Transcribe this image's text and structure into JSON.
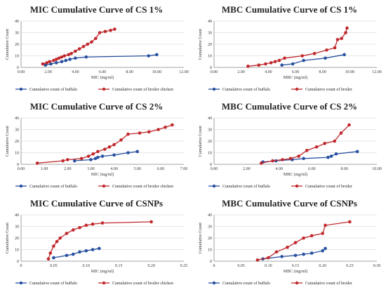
{
  "chart_data": [
    {
      "type": "line",
      "title": "MIC Cumulative Curve of CS 1%",
      "xlabel": "MIC (mg/ml)",
      "ylabel": "Cumulative Count",
      "xlim": [
        0,
        12
      ],
      "ylim": [
        0,
        40
      ],
      "x_ticks": [
        "0.00",
        "2.00",
        "4.00",
        "6.00",
        "8.00",
        "10.00",
        "12.00"
      ],
      "y_ticks": [
        "0",
        "10",
        "20",
        "30",
        "40"
      ],
      "grid": true,
      "legend_position": "bottom",
      "series": [
        {
          "name": "Cumulative count of buffalo",
          "color": "#2750a0",
          "x": [
            1.8,
            2.2,
            2.6,
            3.0,
            3.3,
            3.6,
            4.0,
            4.8,
            9.4,
            10.0
          ],
          "y": [
            2,
            3,
            4,
            5,
            6,
            7,
            8,
            9,
            10,
            11
          ]
        },
        {
          "name": "Cumulative count of broiler chicken",
          "color": "#c0282c",
          "x": [
            1.6,
            1.9,
            2.1,
            2.4,
            2.6,
            2.8,
            3.0,
            3.2,
            3.5,
            3.7,
            4.0,
            4.3,
            4.6,
            4.9,
            5.2,
            5.5,
            5.8,
            6.2,
            6.6,
            6.9
          ],
          "y": [
            3,
            4,
            5,
            6,
            7,
            8,
            9,
            10,
            11,
            12,
            14,
            16,
            18,
            20,
            22,
            25,
            30,
            31,
            32,
            33
          ]
        }
      ]
    },
    {
      "type": "line",
      "title": "MBC Cumulative Curve of CS 1%",
      "xlabel": "MBC (mg/ml)",
      "ylabel": "Cumulative Count",
      "xlim": [
        0,
        12
      ],
      "ylim": [
        0,
        40
      ],
      "x_ticks": [
        "0.00",
        "2.00",
        "4.00",
        "6.00",
        "8.00",
        "10.00",
        "12.00"
      ],
      "y_ticks": [
        "0",
        "10",
        "20",
        "30",
        "40"
      ],
      "grid": true,
      "legend_position": "bottom",
      "series": [
        {
          "name": "Cumulative count of buffalo",
          "color": "#2750a0",
          "x": [
            5.0,
            5.8,
            6.6,
            8.2,
            9.6
          ],
          "y": [
            2,
            3,
            6,
            8,
            11
          ]
        },
        {
          "name": "Cumulative count of broiler",
          "color": "#c0282c",
          "x": [
            2.5,
            3.3,
            3.8,
            4.2,
            4.5,
            4.8,
            5.2,
            6.5,
            7.4,
            8.3,
            8.9,
            9.1,
            9.4,
            9.7,
            9.8
          ],
          "y": [
            1,
            2,
            3,
            4,
            5,
            6,
            8,
            10,
            12,
            15,
            17,
            24,
            25,
            30,
            34
          ]
        }
      ]
    },
    {
      "type": "line",
      "title": "MIC Cumulative Curve of CS 2%",
      "xlabel": "MIC (mg/ml)",
      "ylabel": "Cumulative Count",
      "xlim": [
        0,
        7
      ],
      "ylim": [
        0,
        40
      ],
      "x_ticks": [
        "0.00",
        "1.00",
        "2.00",
        "3.00",
        "4.00",
        "5.00",
        "6.00",
        "7.00"
      ],
      "y_ticks": [
        "0",
        "10",
        "20",
        "30",
        "40"
      ],
      "grid": true,
      "legend_position": "bottom",
      "series": [
        {
          "name": "Cumulative count of buffalo",
          "color": "#2750a0",
          "x": [
            2.3,
            3.0,
            3.2,
            3.3,
            3.5,
            4.0,
            4.6,
            5.0
          ],
          "y": [
            3,
            4,
            5,
            6,
            7,
            8,
            10,
            11
          ]
        },
        {
          "name": "Cumulative count of broiler chicken",
          "color": "#c0282c",
          "x": [
            0.7,
            1.8,
            2.0,
            2.6,
            2.9,
            3.1,
            3.3,
            3.6,
            3.8,
            4.0,
            4.3,
            4.6,
            5.1,
            5.5,
            5.9,
            6.2,
            6.5
          ],
          "y": [
            1,
            3,
            4,
            5,
            7,
            9,
            11,
            13,
            15,
            17,
            21,
            26,
            27,
            28,
            30,
            32,
            34
          ]
        }
      ]
    },
    {
      "type": "line",
      "title": "MBC Cumulative Curve of CS 2%",
      "xlabel": "MBC (mg/ml)",
      "ylabel": "Cumulative Count",
      "xlim": [
        0,
        10
      ],
      "ylim": [
        0,
        40
      ],
      "x_ticks": [
        "0.00",
        "2.00",
        "4.00",
        "6.00",
        "8.00",
        "10.00"
      ],
      "y_ticks": [
        "0",
        "10",
        "20",
        "30",
        "40"
      ],
      "grid": true,
      "legend_position": "bottom",
      "series": [
        {
          "name": "Cumulative count of buffalo",
          "color": "#2750a0",
          "x": [
            3.0,
            3.8,
            4.8,
            5.5,
            7.0,
            7.2,
            7.5,
            8.8
          ],
          "y": [
            2,
            3,
            4,
            5,
            6,
            7,
            9,
            11
          ]
        },
        {
          "name": "Cumulative count of broiler",
          "color": "#c0282c",
          "x": [
            2.9,
            3.6,
            4.2,
            4.7,
            5.2,
            5.7,
            6.3,
            6.8,
            7.4,
            7.8,
            8.3
          ],
          "y": [
            1,
            3,
            4,
            5,
            7,
            12,
            15,
            18,
            20,
            27,
            34
          ]
        }
      ]
    },
    {
      "type": "line",
      "title": "MIC Cumulative Curve of CSNPs",
      "xlabel": "MIC (mg/ml)",
      "ylabel": "Cumulative Count",
      "xlim": [
        0,
        0.25
      ],
      "ylim": [
        0,
        40
      ],
      "x_ticks": [
        "0",
        "0.05",
        "0.10",
        "0.15",
        "0.20",
        "0.25"
      ],
      "y_ticks": [
        "0",
        "10",
        "20",
        "30",
        "40"
      ],
      "grid": true,
      "legend_position": "bottom",
      "series": [
        {
          "name": "Cumulative count of buffalo",
          "color": "#2750a0",
          "x": [
            0.05,
            0.07,
            0.08,
            0.09,
            0.1,
            0.11,
            0.12
          ],
          "y": [
            3,
            5,
            6,
            8,
            9,
            10,
            11
          ]
        },
        {
          "name": "Cumulative count of broiler chicken",
          "color": "#c0282c",
          "x": [
            0.042,
            0.045,
            0.05,
            0.055,
            0.06,
            0.07,
            0.08,
            0.09,
            0.1,
            0.11,
            0.125,
            0.2
          ],
          "y": [
            2,
            7,
            13,
            17,
            20,
            24,
            27,
            29,
            31,
            32,
            33,
            34
          ]
        }
      ]
    },
    {
      "type": "line",
      "title": "MBC Cumulative Curve of CSNPs",
      "xlabel": "MBC (mg/ml)",
      "ylabel": "Cumulative Count",
      "xlim": [
        0,
        0.3
      ],
      "ylim": [
        0,
        40
      ],
      "x_ticks": [
        "0",
        "0.05",
        "0.10",
        "0.15",
        "0.20",
        "0.25",
        "0.30"
      ],
      "y_ticks": [
        "0",
        "10",
        "20",
        "30",
        "40"
      ],
      "grid": true,
      "legend_position": "bottom",
      "series": [
        {
          "name": "Cumulative count of buffalo",
          "color": "#2750a0",
          "x": [
            0.09,
            0.125,
            0.15,
            0.165,
            0.18,
            0.2,
            0.205
          ],
          "y": [
            2,
            4,
            5,
            6,
            7,
            9,
            11
          ]
        },
        {
          "name": "Cumulative count of broiler",
          "color": "#c0282c",
          "x": [
            0.08,
            0.1,
            0.115,
            0.135,
            0.15,
            0.165,
            0.18,
            0.2,
            0.205,
            0.25
          ],
          "y": [
            1,
            3,
            8,
            12,
            16,
            20,
            22,
            24,
            31,
            34
          ]
        }
      ]
    }
  ]
}
